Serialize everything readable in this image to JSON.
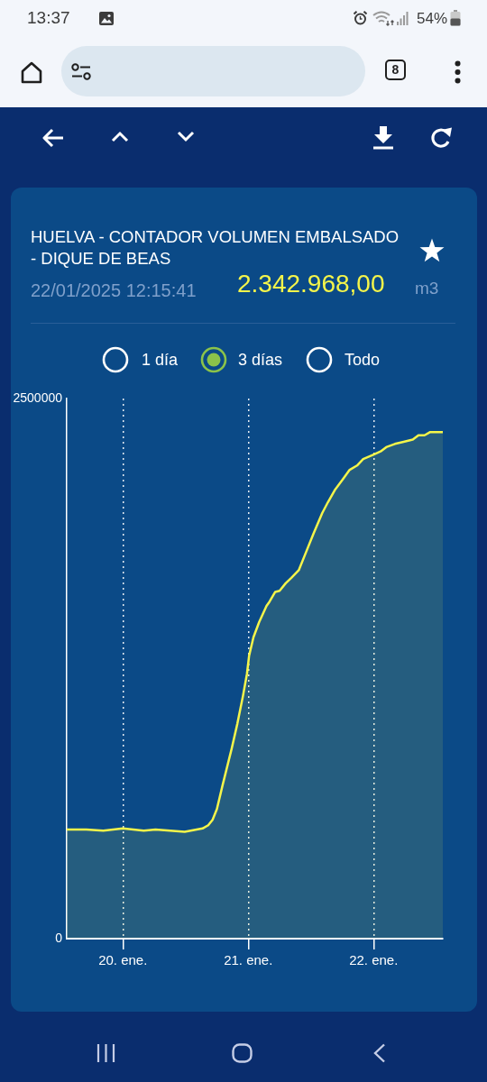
{
  "chart_data": {
    "type": "area",
    "title": "HUELVA - CONTADOR VOLUMEN EMBALSADO - DIQUE DE BEAS",
    "subtitle": "22/01/2025 12:15:41",
    "annotations": [
      "2.342.968,00",
      "m3",
      "1 día",
      "3 días",
      "Todo",
      "13:37",
      "54%",
      "8"
    ],
    "x": [
      "2025-01-19T13:15",
      "2025-01-19T17:00",
      "2025-01-19T20:15",
      "2025-01-20T00:00",
      "2025-01-20T04:00",
      "2025-01-20T06:15",
      "2025-01-20T11:50",
      "2025-01-20T15:15",
      "2025-01-20T16:20",
      "2025-01-20T17:10",
      "2025-01-20T18:00",
      "2025-01-20T19:05",
      "2025-01-20T20:50",
      "2025-01-20T21:55",
      "2025-01-20T23:00",
      "2025-01-20T23:45",
      "2025-01-21T00:10",
      "2025-01-21T01:00",
      "2025-01-21T02:05",
      "2025-01-21T03:30",
      "2025-01-21T04:05",
      "2025-01-21T05:10",
      "2025-01-21T06:00",
      "2025-01-21T07:10",
      "2025-01-21T08:15",
      "2025-01-21T09:40",
      "2025-01-21T11:05",
      "2025-01-21T12:30",
      "2025-01-21T14:10",
      "2025-01-21T15:15",
      "2025-01-21T16:40",
      "2025-01-21T18:05",
      "2025-01-21T19:25",
      "2025-01-21T20:50",
      "2025-01-21T22:00",
      "2025-01-21T23:55",
      "2025-01-22T01:20",
      "2025-01-22T02:25",
      "2025-01-22T04:05",
      "2025-01-22T05:45",
      "2025-01-22T07:30",
      "2025-01-22T08:35",
      "2025-01-22T09:45",
      "2025-01-22T10:50",
      "2025-01-22T13:15"
    ],
    "series": [
      {
        "color": "#f5f54a",
        "values": [
          505000,
          505000,
          500000,
          510000,
          500000,
          505000,
          495000,
          510000,
          525000,
          550000,
          600000,
          710000,
          880000,
          995000,
          1125000,
          1225000,
          1310000,
          1395000,
          1465000,
          1540000,
          1560000,
          1605000,
          1610000,
          1645000,
          1670000,
          1705000,
          1790000,
          1875000,
          1970000,
          2020000,
          2080000,
          2125000,
          2170000,
          2190000,
          2220000,
          2240000,
          2255000,
          2275000,
          2290000,
          2300000,
          2310000,
          2330000,
          2330000,
          2345000,
          2345000
        ]
      }
    ],
    "xlim": [
      "2025-01-19T13:15",
      "2025-01-22T13:15"
    ],
    "xticks": [
      {
        "value": "2025-01-20",
        "label": "20. ene."
      },
      {
        "value": "2025-01-21",
        "label": "21. ene."
      },
      {
        "value": "2025-01-22",
        "label": "22. ene."
      }
    ],
    "ylim": [
      0,
      2500000
    ],
    "yticks": [
      0,
      2500000
    ],
    "grid": "x",
    "marker": "none",
    "line_style": "solid"
  }
}
